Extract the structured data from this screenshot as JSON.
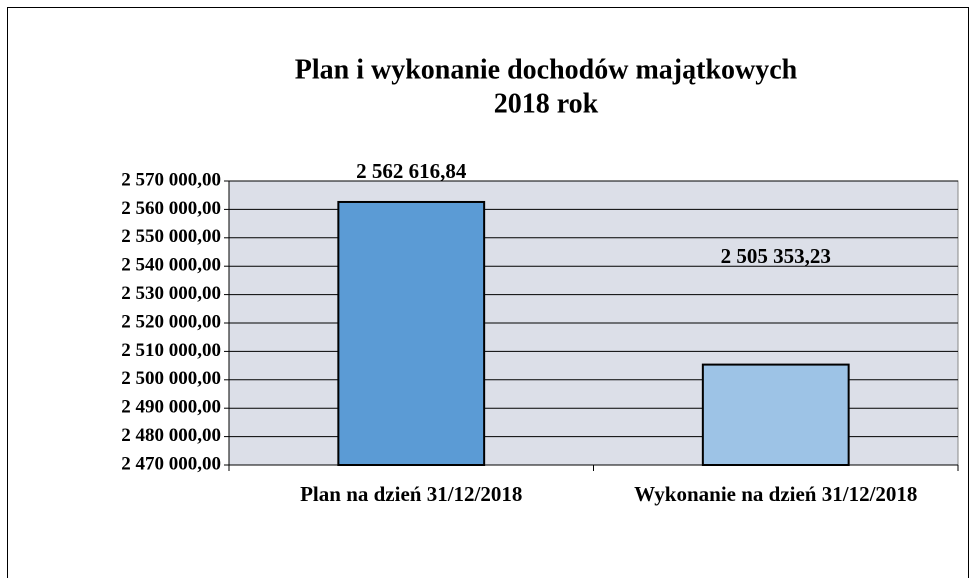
{
  "chart_data": {
    "type": "bar",
    "title": [
      "Plan i wykonanie dochodów majątkowych",
      "2018 rok"
    ],
    "categories": [
      "Plan na dzień 31/12/2018",
      "Wykonanie na dzień 31/12/2018"
    ],
    "values": [
      2562616.84,
      2505353.23
    ],
    "value_labels": [
      "2 562 616,84",
      "2 505 353,23"
    ],
    "colors": [
      "#5b9bd5",
      "#9dc3e6"
    ],
    "ylim": [
      2470000,
      2570000
    ],
    "yticks": [
      {
        "value": 2470000,
        "label": "2 470 000,00"
      },
      {
        "value": 2480000,
        "label": "2 480 000,00"
      },
      {
        "value": 2490000,
        "label": "2 490 000,00"
      },
      {
        "value": 2500000,
        "label": "2 500 000,00"
      },
      {
        "value": 2510000,
        "label": "2 510 000,00"
      },
      {
        "value": 2520000,
        "label": "2 520 000,00"
      },
      {
        "value": 2530000,
        "label": "2 530 000,00"
      },
      {
        "value": 2540000,
        "label": "2 540 000,00"
      },
      {
        "value": 2550000,
        "label": "2 550 000,00"
      },
      {
        "value": 2560000,
        "label": "2 560 000,00"
      },
      {
        "value": 2570000,
        "label": "2 570 000,00"
      }
    ],
    "grid": true
  }
}
